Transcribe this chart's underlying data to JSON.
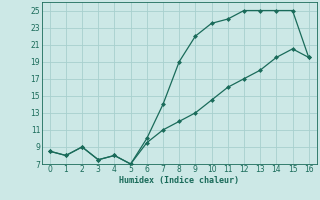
{
  "xlabel": "Humidex (Indice chaleur)",
  "line1_x": [
    0,
    1,
    2,
    3,
    4,
    5,
    6,
    7,
    8,
    9,
    10,
    11,
    12,
    13,
    14,
    15,
    16
  ],
  "line1_y": [
    8.5,
    8.0,
    9.0,
    7.5,
    8.0,
    7.0,
    10.0,
    14.0,
    19.0,
    22.0,
    23.5,
    24.0,
    25.0,
    25.0,
    25.0,
    25.0,
    19.5
  ],
  "line2_x": [
    0,
    1,
    2,
    3,
    4,
    5,
    6,
    7,
    8,
    9,
    10,
    11,
    12,
    13,
    14,
    15,
    16
  ],
  "line2_y": [
    8.5,
    8.0,
    9.0,
    7.5,
    8.0,
    7.0,
    9.5,
    11.0,
    12.0,
    13.0,
    14.5,
    16.0,
    17.0,
    18.0,
    19.5,
    20.5,
    19.5
  ],
  "line_color": "#1a6b5a",
  "bg_color": "#cce8e6",
  "grid_color": "#a8d0ce",
  "ylim": [
    7,
    26
  ],
  "xlim": [
    -0.5,
    16.5
  ],
  "yticks": [
    7,
    9,
    11,
    13,
    15,
    17,
    19,
    21,
    23,
    25
  ],
  "xticks": [
    0,
    1,
    2,
    3,
    4,
    5,
    6,
    7,
    8,
    9,
    10,
    11,
    12,
    13,
    14,
    15,
    16
  ]
}
